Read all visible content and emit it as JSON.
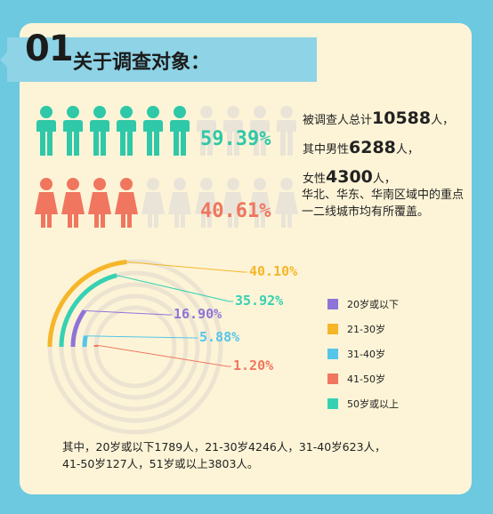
{
  "header": {
    "number": "01",
    "title": "关于调查对象："
  },
  "colors": {
    "male": "#2fc8a8",
    "female": "#f0765f",
    "inactive": "#e9e4d7",
    "track": "#ece4d1",
    "age_20_below": "#8f74d8",
    "age_21_30": "#f5b629",
    "age_31_40": "#55c5ea",
    "age_41_50": "#f0765f",
    "age_51_above": "#36d1b3"
  },
  "stats": {
    "total_prefix": "被调查人总计",
    "total_value": "10588",
    "male_prefix": "其中男性",
    "male_value": "6288",
    "female_prefix": "女性",
    "female_value": "4300",
    "unit": "人",
    "sep1": "，",
    "region_note": "华北、华东、华南区域中的重点一二线城市均有所覆盖。"
  },
  "chart_data": [
    {
      "type": "pictogram",
      "categories": [
        "male",
        "female"
      ],
      "values": [
        59.39,
        40.61
      ],
      "labels": [
        "59.39%",
        "40.61%"
      ],
      "icons_per_row": 10
    },
    {
      "type": "radial-bar",
      "series": [
        {
          "name": "20岁或以下",
          "value": 16.9,
          "label": "16.90%"
        },
        {
          "name": "21-30岁",
          "value": 40.1,
          "label": "40.10%"
        },
        {
          "name": "31-40岁",
          "value": 5.88,
          "label": "5.88%"
        },
        {
          "name": "41-50岁",
          "value": 1.2,
          "label": "1.20%"
        },
        {
          "name": "50岁或以上",
          "value": 35.92,
          "label": "35.92%"
        }
      ]
    }
  ],
  "footer": {
    "line1": "其中，20岁或以下1789人，21-30岁4246人，31-40岁623人，",
    "line2": "41-50岁127人，51岁或以上3803人。"
  }
}
